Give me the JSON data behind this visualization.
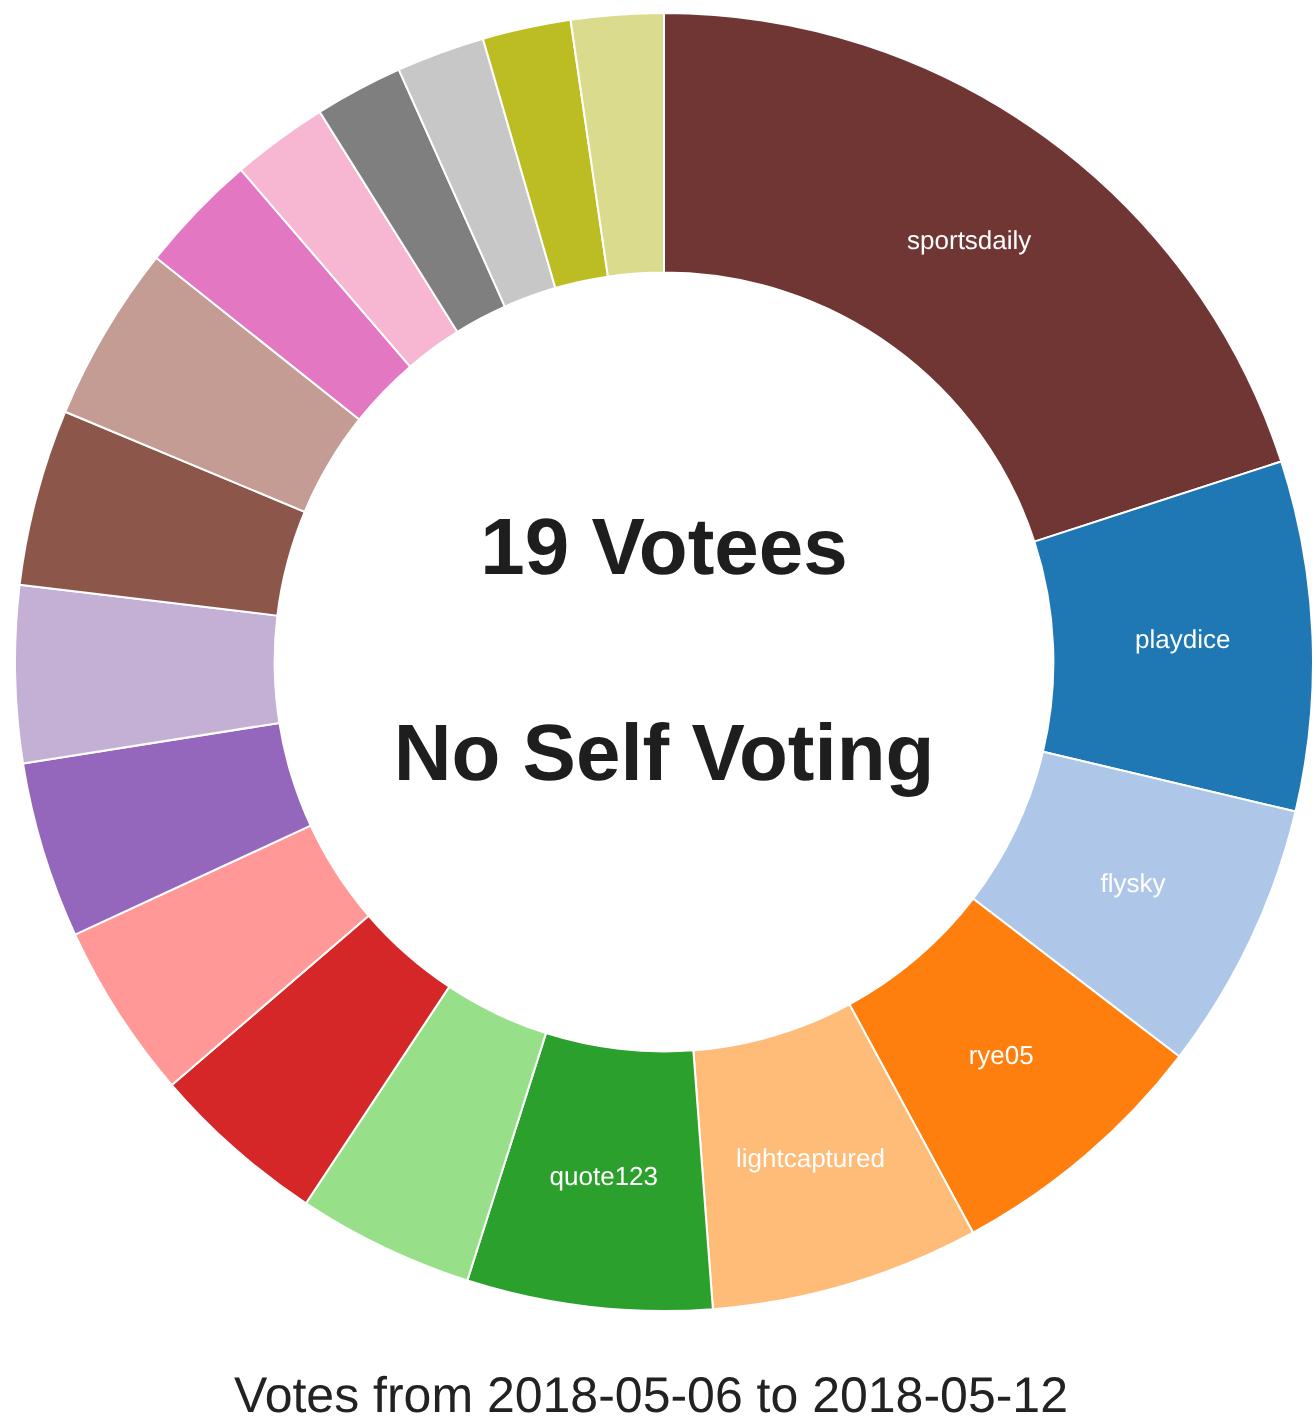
{
  "chart_data": {
    "type": "donut",
    "title": "19 Votees",
    "subtitle": "No Self Voting",
    "annotations": [
      "Votes from 2018-05-06 to 2018-05-12"
    ],
    "categories": [
      "sportsdaily",
      "playdice",
      "flysky",
      "rye05",
      "lightcaptured",
      "quote123",
      null,
      null,
      null,
      null,
      null,
      null,
      null,
      null,
      null,
      null,
      null,
      null,
      null
    ],
    "values": [
      20.0,
      8.7,
      6.7,
      6.7,
      6.7,
      6.1,
      4.4,
      4.4,
      4.4,
      4.4,
      4.4,
      4.4,
      4.4,
      3.0,
      2.4,
      2.2,
      2.2,
      2.2,
      2.3
    ],
    "colors": [
      "#6f3633",
      "#1f77b4",
      "#aec7e8",
      "#ff7f0e",
      "#ffbb78",
      "#2ca02c",
      "#98df8a",
      "#d62728",
      "#ff9896",
      "#9467bd",
      "#c5b0d5",
      "#8c564b",
      "#c49c94",
      "#e377c2",
      "#f7b6d2",
      "#7f7f7f",
      "#c7c7c7",
      "#bcbd22",
      "#dbdb8d"
    ]
  }
}
